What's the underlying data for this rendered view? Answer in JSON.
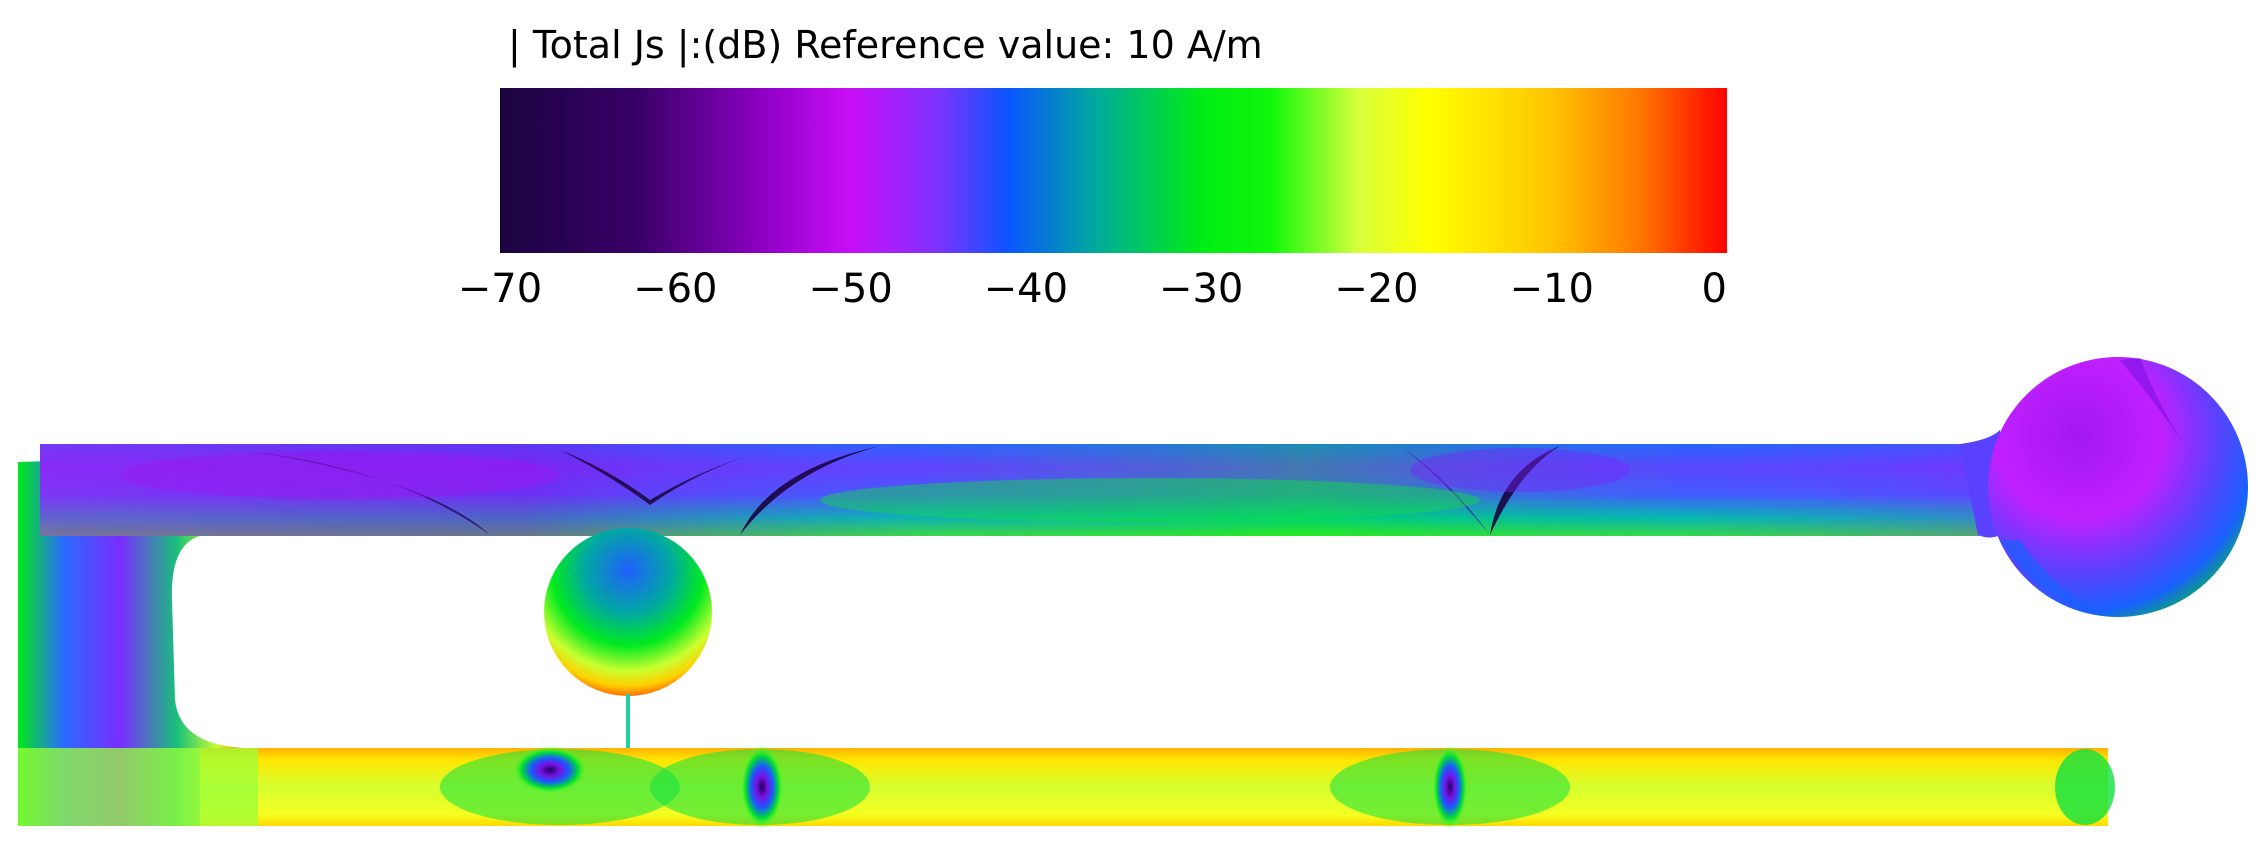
{
  "colorbar": {
    "title": "| Total Js |:(dB) Reference value: 10 A/m",
    "min": -70,
    "max": 0,
    "tick_labels": [
      "−70",
      "−60",
      "−50",
      "−40",
      "−30",
      "−20",
      "−10",
      "0"
    ],
    "colormap": [
      {
        "value": -70,
        "color": "#1a0440"
      },
      {
        "value": -62,
        "color": "#3a0069"
      },
      {
        "value": -55,
        "color": "#8e00c4"
      },
      {
        "value": -50,
        "color": "#c90ef6"
      },
      {
        "value": -45,
        "color": "#7c33ff"
      },
      {
        "value": -41,
        "color": "#0a55ff"
      },
      {
        "value": -36,
        "color": "#00aa9c"
      },
      {
        "value": -30,
        "color": "#00ec14"
      },
      {
        "value": -26,
        "color": "#10f80c"
      },
      {
        "value": -21,
        "color": "#d8ff3c"
      },
      {
        "value": -17,
        "color": "#ffff00"
      },
      {
        "value": -10,
        "color": "#ffc400"
      },
      {
        "value": -5,
        "color": "#ff7800"
      },
      {
        "value": 0,
        "color": "#ff0000"
      }
    ]
  },
  "chart_data": {
    "type": "heatmap",
    "title": "| Total Js |:(dB) Reference value: 10 A/m",
    "colorbar_range": [
      -70,
      0
    ],
    "colorbar_ticks": [
      -70,
      -60,
      -50,
      -40,
      -30,
      -20,
      -10,
      0
    ]
  }
}
